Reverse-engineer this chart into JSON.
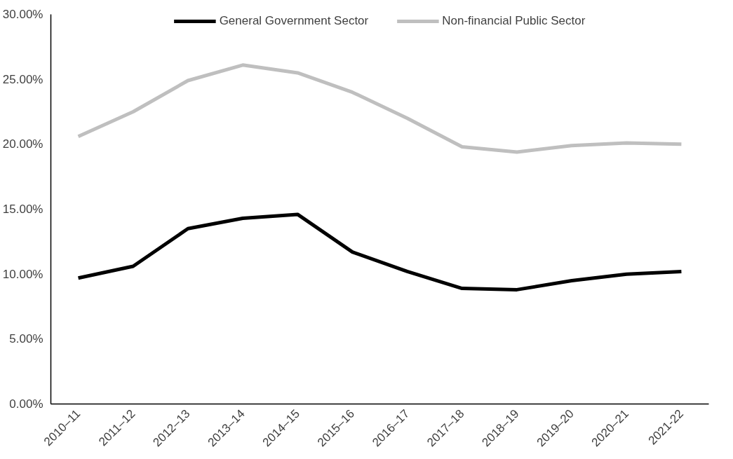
{
  "chart_data": {
    "type": "line",
    "categories": [
      "2010–11",
      "2011–12",
      "2012–13",
      "2013–14",
      "2014–15",
      "2015–16",
      "2016–17",
      "2017–18",
      "2018–19",
      "2019–20",
      "2020–21",
      "2021-22"
    ],
    "series": [
      {
        "name": "General Government Sector",
        "color": "#000000",
        "values": [
          9.7,
          10.6,
          13.5,
          14.3,
          14.6,
          11.7,
          10.2,
          8.9,
          8.8,
          9.5,
          10.0,
          10.2
        ]
      },
      {
        "name": "Non-financial Public Sector",
        "color": "#bfbfbf",
        "values": [
          20.6,
          22.5,
          24.9,
          26.1,
          25.5,
          24.0,
          22.0,
          19.8,
          19.4,
          19.9,
          20.1,
          20.0
        ]
      }
    ],
    "ylim": [
      0,
      30
    ],
    "yticks": [
      {
        "value": 0,
        "label": "0.00%"
      },
      {
        "value": 5,
        "label": "5.00%"
      },
      {
        "value": 10,
        "label": "10.00%"
      },
      {
        "value": 15,
        "label": "15.00%"
      },
      {
        "value": 20,
        "label": "20.00%"
      },
      {
        "value": 25,
        "label": "25.00%"
      },
      {
        "value": 30,
        "label": "30.00%"
      }
    ],
    "grid": false,
    "legend": "top",
    "marker": "none",
    "line_style": "solid"
  }
}
